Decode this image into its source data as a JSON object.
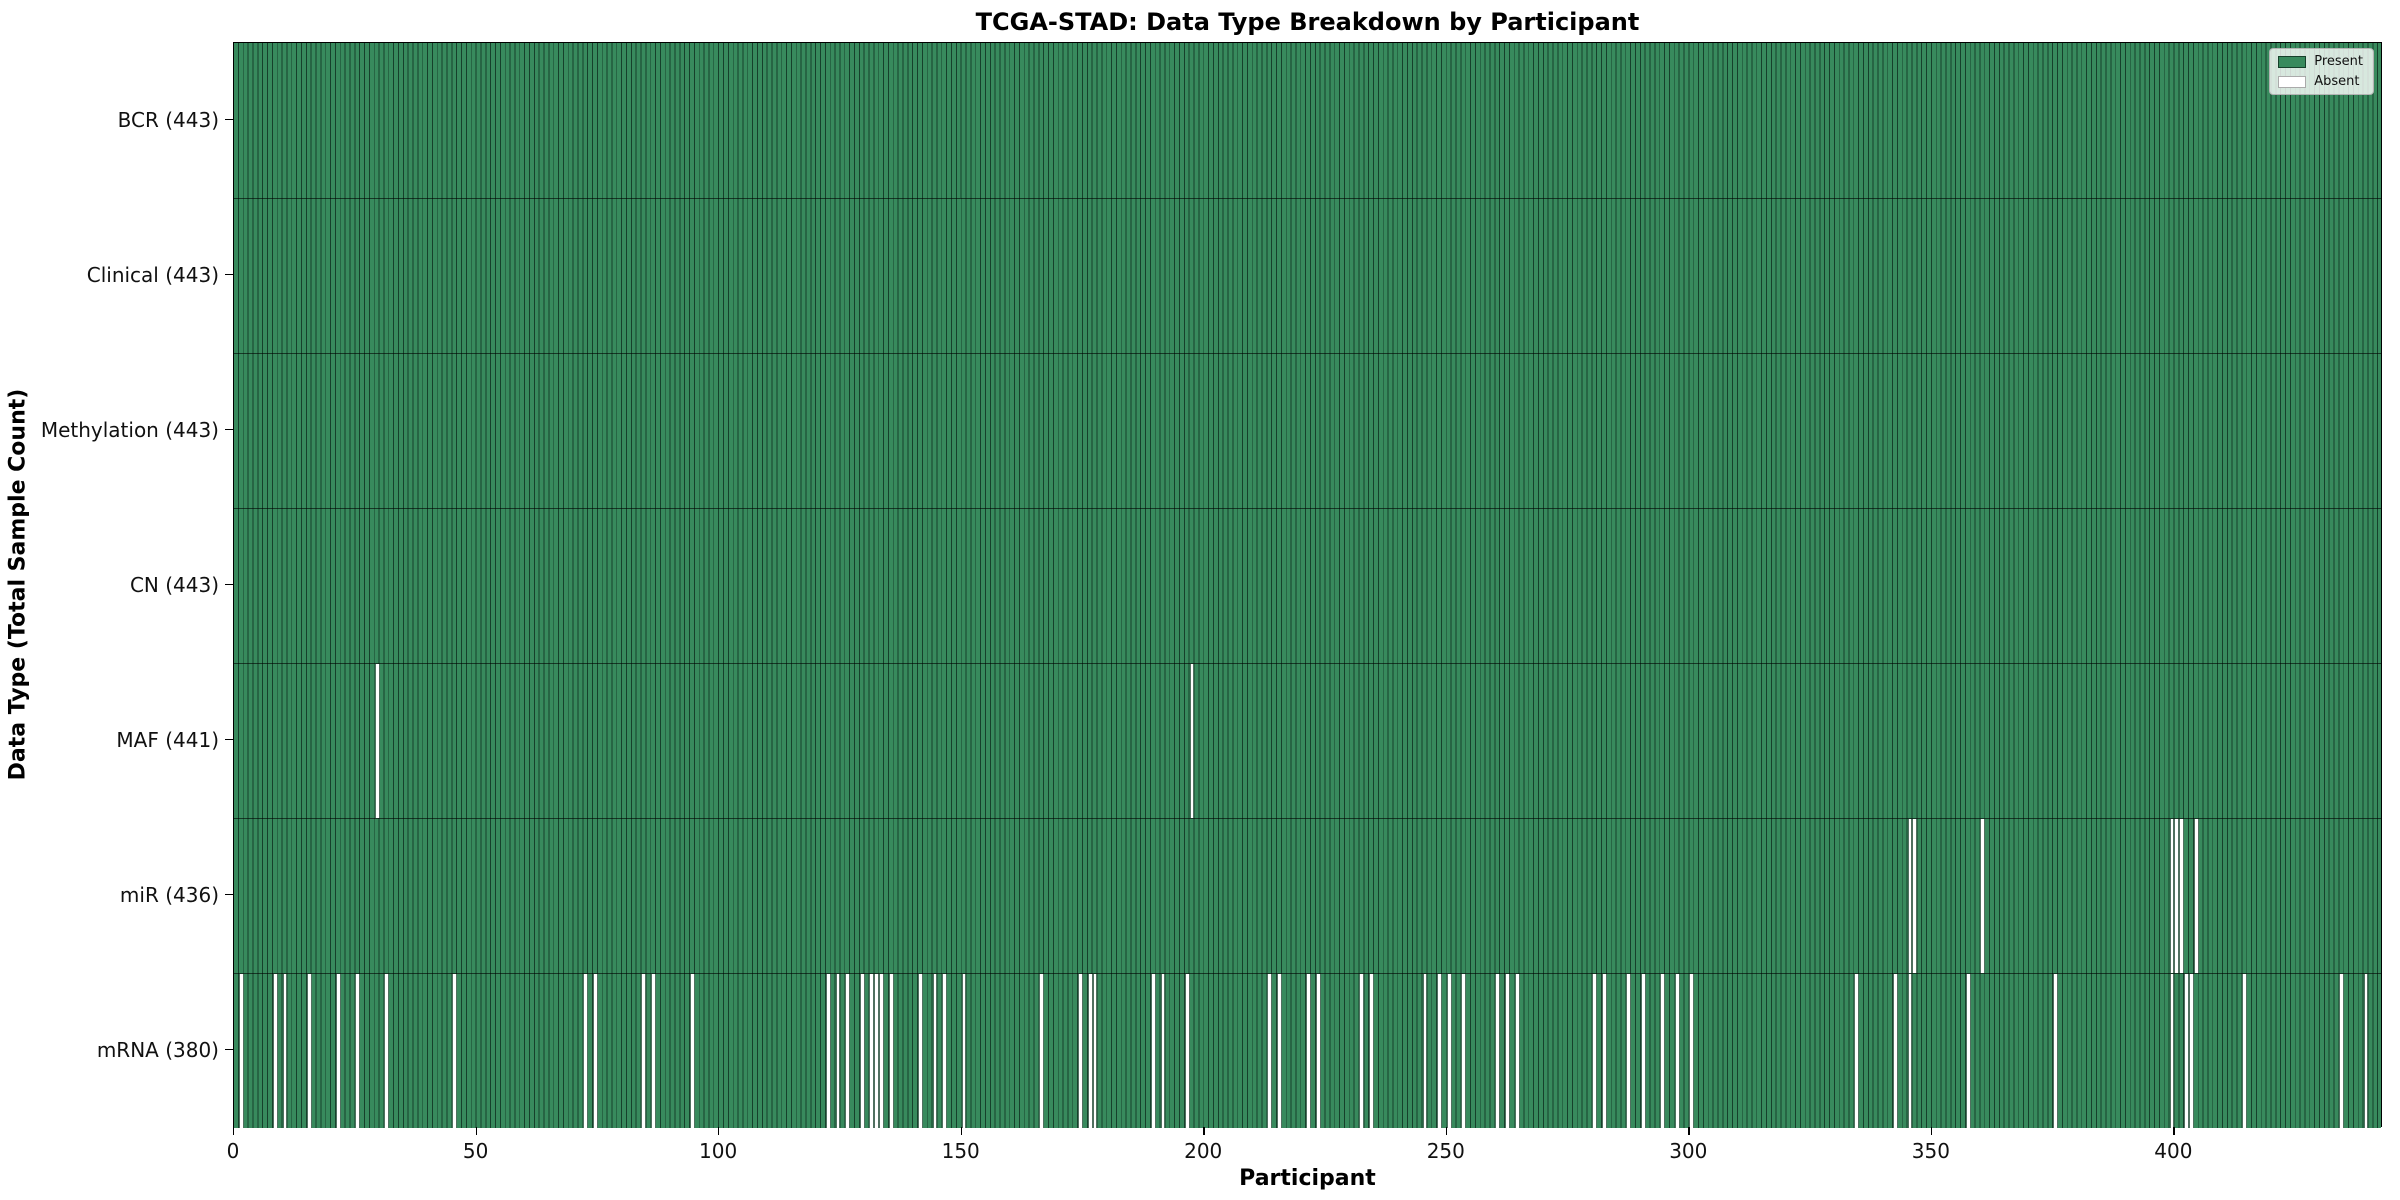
{
  "chart_data": {
    "type": "heatmap",
    "title": "TCGA-STAD: Data Type Breakdown by Participant",
    "xlabel": "Participant",
    "ylabel": "Data Type (Total Sample Count)",
    "n_participants": 443,
    "x_ticks": [
      0,
      50,
      100,
      150,
      200,
      250,
      300,
      350,
      400
    ],
    "xlim": [
      0,
      443
    ],
    "grid": false,
    "legend_position": "upper right",
    "legend": [
      {
        "label": "Present",
        "color": "#388a5d"
      },
      {
        "label": "Absent",
        "color": "#ffffff"
      }
    ],
    "colors": {
      "present": "#388a5d",
      "cell_edge": "#16402b",
      "absent": "#ffffff",
      "row_divider": "#000000"
    },
    "rows": [
      {
        "label": "BCR (443)",
        "name": "BCR",
        "present_count": 443,
        "absent_participants": []
      },
      {
        "label": "Clinical (443)",
        "name": "Clinical",
        "present_count": 443,
        "absent_participants": []
      },
      {
        "label": "Methylation (443)",
        "name": "Methylation",
        "present_count": 443,
        "absent_participants": []
      },
      {
        "label": "CN (443)",
        "name": "CN",
        "present_count": 443,
        "absent_participants": []
      },
      {
        "label": "MAF (441)",
        "name": "MAF",
        "present_count": 441,
        "absent_participants": [
          29,
          197
        ]
      },
      {
        "label": "miR (436)",
        "name": "miR",
        "present_count": 436,
        "absent_participants": [
          345,
          346,
          360,
          399,
          400,
          401,
          404
        ]
      },
      {
        "label": "mRNA (380)",
        "name": "mRNA",
        "present_count": 380,
        "absent_participants": [
          1,
          8,
          10,
          15,
          21,
          25,
          31,
          45,
          72,
          74,
          84,
          86,
          94,
          122,
          124,
          126,
          129,
          131,
          132,
          133,
          135,
          141,
          144,
          146,
          150,
          166,
          174,
          176,
          177,
          189,
          191,
          196,
          213,
          215,
          221,
          223,
          232,
          234,
          245,
          248,
          250,
          253,
          260,
          262,
          264,
          280,
          282,
          287,
          290,
          294,
          297,
          300,
          334,
          342,
          345,
          357,
          375,
          399,
          402,
          403,
          414,
          434,
          439
        ]
      }
    ]
  }
}
